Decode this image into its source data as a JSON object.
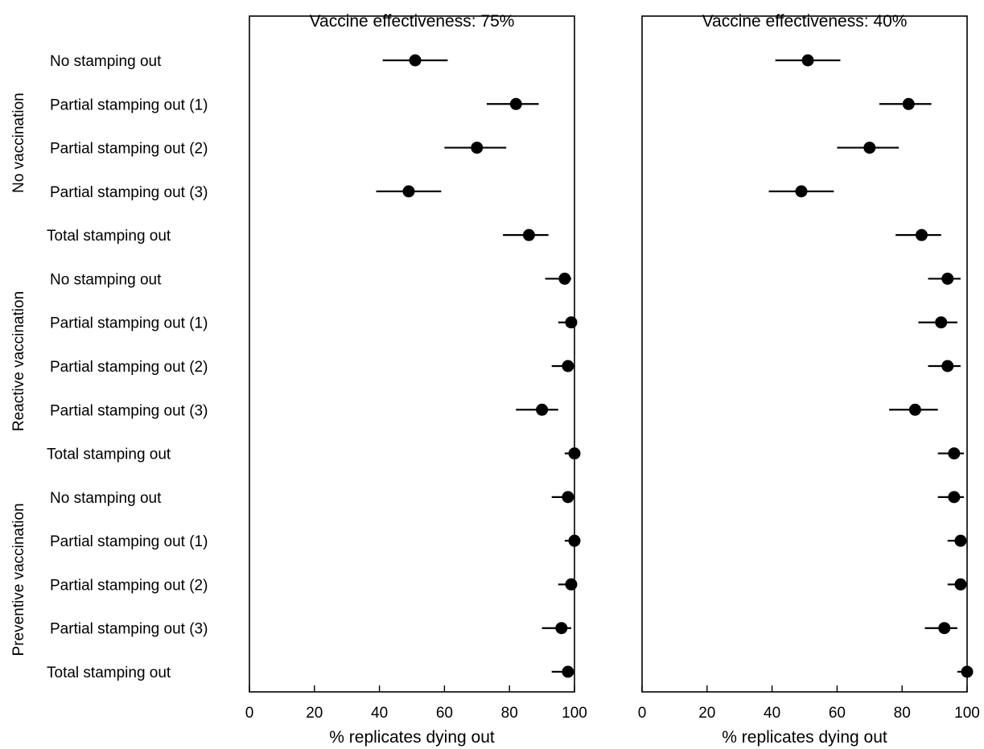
{
  "chart_data": {
    "type": "scatter",
    "row_labels": [
      "No stamping out",
      "Partial stamping out (1)",
      "Partial stamping out (2)",
      "Partial stamping out (3)",
      "Total stamping out",
      "No stamping out",
      "Partial stamping out (1)",
      "Partial stamping out (2)",
      "Partial stamping out (3)",
      "Total stamping out",
      "No stamping out",
      "Partial stamping out (1)",
      "Partial stamping out (2)",
      "Partial stamping out (3)",
      "Total stamping out"
    ],
    "groups": [
      {
        "label": "No vaccination",
        "rows": [
          0,
          4
        ]
      },
      {
        "label": "Reactive vaccination",
        "rows": [
          5,
          9
        ]
      },
      {
        "label": "Preventive vaccination",
        "rows": [
          10,
          14
        ]
      }
    ],
    "xlim": [
      0,
      100
    ],
    "xticks": [
      "0",
      "20",
      "40",
      "60",
      "80",
      "100"
    ],
    "xlabel": "% replicates dying out",
    "panels": [
      {
        "title": "Vaccine effectiveness: 75%",
        "points": [
          {
            "value": 51,
            "low": 41,
            "high": 61
          },
          {
            "value": 82,
            "low": 73,
            "high": 89
          },
          {
            "value": 70,
            "low": 60,
            "high": 79
          },
          {
            "value": 49,
            "low": 39,
            "high": 59
          },
          {
            "value": 86,
            "low": 78,
            "high": 92
          },
          {
            "value": 97,
            "low": 91,
            "high": 99
          },
          {
            "value": 99,
            "low": 95,
            "high": 100
          },
          {
            "value": 98,
            "low": 93,
            "high": 100
          },
          {
            "value": 90,
            "low": 82,
            "high": 95
          },
          {
            "value": 100,
            "low": 97,
            "high": 100
          },
          {
            "value": 98,
            "low": 93,
            "high": 100
          },
          {
            "value": 100,
            "low": 97,
            "high": 100
          },
          {
            "value": 99,
            "low": 95,
            "high": 100
          },
          {
            "value": 96,
            "low": 90,
            "high": 99
          },
          {
            "value": 98,
            "low": 93,
            "high": 100
          }
        ]
      },
      {
        "title": "Vaccine effectiveness: 40%",
        "points": [
          {
            "value": 51,
            "low": 41,
            "high": 61
          },
          {
            "value": 82,
            "low": 73,
            "high": 89
          },
          {
            "value": 70,
            "low": 60,
            "high": 79
          },
          {
            "value": 49,
            "low": 39,
            "high": 59
          },
          {
            "value": 86,
            "low": 78,
            "high": 92
          },
          {
            "value": 94,
            "low": 88,
            "high": 98
          },
          {
            "value": 92,
            "low": 85,
            "high": 97
          },
          {
            "value": 94,
            "low": 88,
            "high": 98
          },
          {
            "value": 84,
            "low": 76,
            "high": 91
          },
          {
            "value": 96,
            "low": 91,
            "high": 99
          },
          {
            "value": 96,
            "low": 91,
            "high": 99
          },
          {
            "value": 98,
            "low": 94,
            "high": 100
          },
          {
            "value": 98,
            "low": 94,
            "high": 100
          },
          {
            "value": 93,
            "low": 87,
            "high": 97
          },
          {
            "value": 100,
            "low": 97,
            "high": 100
          }
        ]
      }
    ]
  }
}
